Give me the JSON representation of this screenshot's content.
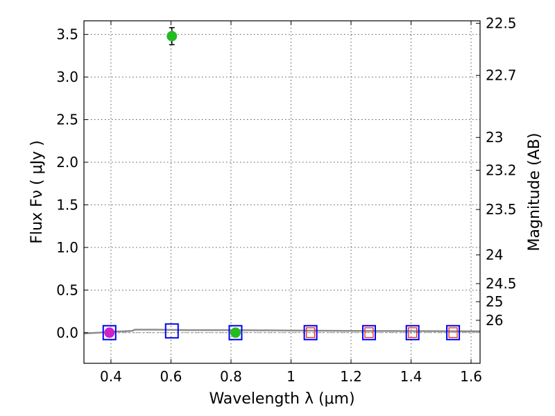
{
  "chart_data": {
    "type": "scatter",
    "xlabel": "Wavelength  λ (μm)",
    "ylabel_left": "Flux  Fν  ( μJy )",
    "ylabel_right": "Magnitude (AB)",
    "xlim": [
      0.31,
      1.63
    ],
    "ylim": [
      -0.36,
      3.66
    ],
    "grid": true,
    "x_ticks": [
      {
        "value": 0.4,
        "label": "0.4"
      },
      {
        "value": 0.6,
        "label": "0.6"
      },
      {
        "value": 0.8,
        "label": "0.8"
      },
      {
        "value": 1.0,
        "label": "1"
      },
      {
        "value": 1.2,
        "label": "1.2"
      },
      {
        "value": 1.4,
        "label": "1.4"
      },
      {
        "value": 1.6,
        "label": "1.6"
      }
    ],
    "y_ticks": [
      {
        "value": 0.0,
        "label": "0.0"
      },
      {
        "value": 0.5,
        "label": "0.5"
      },
      {
        "value": 1.0,
        "label": "1.0"
      },
      {
        "value": 1.5,
        "label": "1.5"
      },
      {
        "value": 2.0,
        "label": "2.0"
      },
      {
        "value": 2.5,
        "label": "2.5"
      },
      {
        "value": 3.0,
        "label": "3.0"
      },
      {
        "value": 3.5,
        "label": "3.5"
      }
    ],
    "right_ticks": [
      {
        "mag": 22.5,
        "label": "22.5"
      },
      {
        "mag": 22.7,
        "label": "22.7"
      },
      {
        "mag": 23.0,
        "label": "23"
      },
      {
        "mag": 23.2,
        "label": "23.2"
      },
      {
        "mag": 23.5,
        "label": "23.5"
      },
      {
        "mag": 24.0,
        "label": "24"
      },
      {
        "mag": 24.5,
        "label": "24.5"
      },
      {
        "mag": 25.0,
        "label": "25"
      },
      {
        "mag": 26.0,
        "label": "26"
      }
    ],
    "series": [
      {
        "name": "template_spectrum",
        "kind": "line",
        "color": "#8c8c8c",
        "points": [
          [
            0.31,
            -0.01
          ],
          [
            0.36,
            0.0
          ],
          [
            0.4,
            0.01
          ],
          [
            0.44,
            0.015
          ],
          [
            0.47,
            0.02
          ],
          [
            0.48,
            0.035
          ],
          [
            0.55,
            0.035
          ],
          [
            0.65,
            0.03
          ],
          [
            0.8,
            0.03
          ],
          [
            1.0,
            0.025
          ],
          [
            1.2,
            0.02
          ],
          [
            1.4,
            0.018
          ],
          [
            1.63,
            0.015
          ]
        ]
      },
      {
        "name": "model_photometry",
        "kind": "open_square",
        "color": "#0000ee",
        "points": [
          [
            0.395,
            0.0
          ],
          [
            0.603,
            0.02
          ],
          [
            0.815,
            0.0
          ],
          [
            1.065,
            0.0
          ],
          [
            1.26,
            0.0
          ],
          [
            1.405,
            0.0
          ],
          [
            1.54,
            0.0
          ]
        ]
      },
      {
        "name": "upper_limit_boxes",
        "kind": "open_square_small",
        "color": "#ee2222",
        "points": [
          [
            1.065,
            0.0
          ],
          [
            1.26,
            0.0
          ],
          [
            1.405,
            0.0
          ],
          [
            1.54,
            0.0
          ]
        ]
      },
      {
        "name": "detection_green",
        "kind": "filled_circle",
        "color": "#22bb22",
        "points": [
          [
            0.603,
            3.48,
            0.1
          ],
          [
            0.815,
            0.0,
            0.02
          ]
        ]
      },
      {
        "name": "detection_magenta",
        "kind": "filled_circle",
        "color": "#cc22cc",
        "points": [
          [
            0.395,
            0.0,
            0.03
          ]
        ]
      }
    ]
  }
}
